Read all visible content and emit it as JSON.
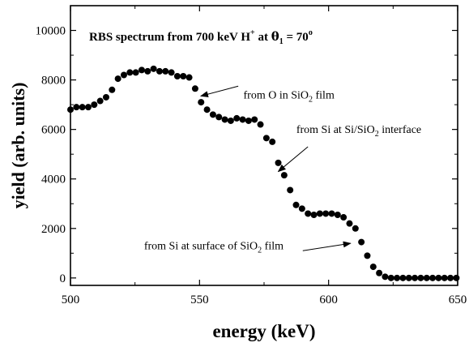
{
  "chart_data": {
    "type": "scatter",
    "title": {
      "pre": "RBS spectrum from 700  keV  H",
      "sup": "+",
      "mid": "  at  ",
      "theta": "θ",
      "theta_sub": "1",
      "post": " = 70",
      "post_sup": "o"
    },
    "xlabel": "energy (keV)",
    "ylabel": "yield (arb. units)",
    "xlim": [
      500,
      650
    ],
    "ylim": [
      -300,
      11000
    ],
    "xticks": [
      500,
      550,
      600,
      650
    ],
    "yticks": [
      0,
      2000,
      4000,
      6000,
      8000,
      10000
    ],
    "grid": false,
    "marker_color": "#000000",
    "series": [
      {
        "x": [
          500,
          502.3,
          504.6,
          506.9,
          509.2,
          511.5,
          513.8,
          516.1,
          518.4,
          520.7,
          523,
          525.3,
          527.6,
          529.9,
          532.2,
          534.5,
          536.8,
          539.1,
          541.4,
          543.7,
          546,
          548.3,
          550.6,
          552.9,
          555.2,
          557.5,
          559.8,
          562.1,
          564.4,
          566.7,
          569,
          571.3,
          573.6,
          575.9,
          578.2,
          580.5,
          582.8,
          585.1,
          587.4,
          589.7,
          592,
          594.3,
          596.6,
          598.9,
          601.2,
          603.5,
          605.8,
          608.1,
          610.4,
          612.7,
          615,
          617.3,
          619.6,
          621.9,
          624.2,
          626.5,
          628.8,
          631.1,
          633.4,
          635.7,
          638,
          640.3,
          642.6,
          644.9,
          647.2,
          649.5
        ],
        "y": [
          6800,
          6900,
          6900,
          6900,
          7000,
          7150,
          7300,
          7600,
          8050,
          8200,
          8300,
          8300,
          8400,
          8350,
          8450,
          8350,
          8350,
          8300,
          8150,
          8150,
          8100,
          7650,
          7100,
          6800,
          6600,
          6500,
          6400,
          6350,
          6450,
          6400,
          6350,
          6400,
          6200,
          5650,
          5500,
          4650,
          4150,
          3550,
          2950,
          2800,
          2600,
          2550,
          2600,
          2600,
          2600,
          2550,
          2450,
          2200,
          2000,
          1450,
          900,
          450,
          200,
          50,
          0,
          0,
          0,
          0,
          0,
          0,
          0,
          0,
          0,
          0,
          0,
          0
        ]
      }
    ],
    "annotations": [
      {
        "key": "o",
        "pre": "from O in SiO",
        "sub": "2",
        "post": " film",
        "text_x": 567,
        "text_y": 7250,
        "arrow_from": [
          565,
          7750
        ],
        "arrow_to": [
          550.5,
          7350
        ]
      },
      {
        "key": "si_int",
        "pre": "from Si at  Si/SiO",
        "sub": "2",
        "post": " interface",
        "text_x": 587.5,
        "text_y": 5850,
        "arrow_from": [
          592,
          5300
        ],
        "arrow_to": [
          580.5,
          4300
        ]
      },
      {
        "key": "si_surf",
        "pre": "from Si at surface of SiO",
        "sub": "2",
        "post": " film",
        "text_x": 528.5,
        "text_y": 1150,
        "arrow_from": [
          590,
          1100
        ],
        "arrow_to": [
          608.5,
          1400
        ]
      }
    ]
  }
}
